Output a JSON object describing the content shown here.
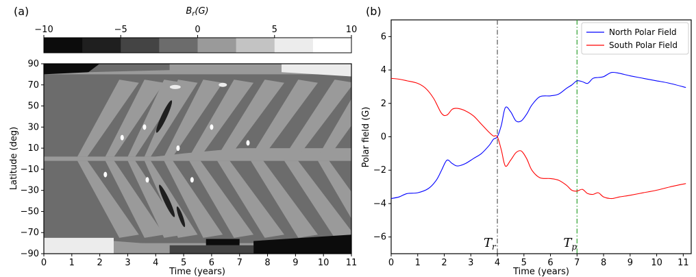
{
  "chart_data": [
    {
      "type": "heatmap",
      "panel_label": "(a)",
      "colorbar": {
        "label_var": "B",
        "label_sub": "r",
        "label_unit": "(G)",
        "ticks": [
          "−10",
          "−5",
          "0",
          "5",
          "10"
        ],
        "range": [
          -10,
          10
        ],
        "levels": [
          -10,
          -7.5,
          -5,
          -2.5,
          0,
          2.5,
          5,
          7.5,
          10
        ],
        "colors": [
          "#0c0c0c",
          "#1f1f1f",
          "#444444",
          "#6c6c6c",
          "#9a9a9a",
          "#c3c3c3",
          "#ececec",
          "#ffffff"
        ]
      },
      "xlabel": "Time (years)",
      "ylabel": "Latitude (deg)",
      "xlim": [
        0,
        11
      ],
      "ylim": [
        -90,
        90
      ],
      "xticks": [
        "0",
        "1",
        "2",
        "3",
        "4",
        "5",
        "6",
        "7",
        "8",
        "9",
        "10",
        "11"
      ],
      "yticks": [
        "−90",
        "−70",
        "−50",
        "−30",
        "−10",
        "10",
        "30",
        "50",
        "70",
        "90"
      ]
    },
    {
      "type": "line",
      "panel_label": "(b)",
      "xlabel": "Time (years)",
      "ylabel": "Polar field (G)",
      "xlim": [
        0,
        11.3
      ],
      "ylim": [
        -7,
        7
      ],
      "xticks": [
        "0",
        "1",
        "2",
        "3",
        "4",
        "5",
        "6",
        "7",
        "8",
        "9",
        "10",
        "11"
      ],
      "yticks": [
        "−6",
        "−4",
        "−2",
        "0",
        "2",
        "4",
        "6"
      ],
      "legend_position": "top-right",
      "series": [
        {
          "name": "North Polar Field",
          "color": "#0000ff",
          "x": [
            0,
            0.3,
            0.6,
            1.0,
            1.4,
            1.7,
            1.9,
            2.1,
            2.3,
            2.5,
            2.8,
            3.1,
            3.4,
            3.7,
            3.85,
            4.0,
            4.15,
            4.3,
            4.5,
            4.7,
            4.9,
            5.1,
            5.3,
            5.6,
            6.0,
            6.3,
            6.6,
            6.8,
            7.0,
            7.2,
            7.4,
            7.6,
            7.8,
            8.0,
            8.3,
            8.6,
            9.0,
            9.5,
            10.0,
            10.5,
            11.1
          ],
          "y": [
            -3.7,
            -3.6,
            -3.4,
            -3.35,
            -3.1,
            -2.6,
            -2.0,
            -1.4,
            -1.6,
            -1.75,
            -1.6,
            -1.3,
            -1.0,
            -0.5,
            -0.15,
            0.0,
            0.7,
            1.75,
            1.5,
            0.95,
            0.95,
            1.35,
            1.9,
            2.4,
            2.45,
            2.55,
            2.9,
            3.1,
            3.35,
            3.3,
            3.2,
            3.5,
            3.55,
            3.6,
            3.85,
            3.8,
            3.65,
            3.5,
            3.35,
            3.2,
            2.95
          ]
        },
        {
          "name": "South Polar Field",
          "color": "#ff0000",
          "x": [
            0,
            0.3,
            0.6,
            1.0,
            1.3,
            1.6,
            1.9,
            2.1,
            2.3,
            2.5,
            2.8,
            3.1,
            3.4,
            3.7,
            3.85,
            4.0,
            4.15,
            4.3,
            4.5,
            4.7,
            4.9,
            5.1,
            5.3,
            5.6,
            6.0,
            6.3,
            6.6,
            6.8,
            7.0,
            7.2,
            7.4,
            7.6,
            7.8,
            8.0,
            8.3,
            8.6,
            9.0,
            9.5,
            10.0,
            10.5,
            11.1
          ],
          "y": [
            3.5,
            3.45,
            3.35,
            3.2,
            2.9,
            2.3,
            1.4,
            1.3,
            1.65,
            1.7,
            1.55,
            1.25,
            0.75,
            0.25,
            0.05,
            0.0,
            -0.8,
            -1.75,
            -1.4,
            -0.95,
            -0.85,
            -1.3,
            -2.0,
            -2.45,
            -2.5,
            -2.6,
            -2.9,
            -3.2,
            -3.25,
            -3.15,
            -3.4,
            -3.45,
            -3.35,
            -3.6,
            -3.7,
            -3.6,
            -3.5,
            -3.35,
            -3.2,
            -3.0,
            -2.8
          ]
        }
      ],
      "vlines": [
        {
          "x": 4.0,
          "label_var": "T",
          "label_sub": "r",
          "color": "#555555",
          "style": "dashdot"
        },
        {
          "x": 7.0,
          "label_var": "T",
          "label_sub": "p",
          "color": "#2ca02c",
          "style": "dashdot"
        }
      ]
    }
  ]
}
